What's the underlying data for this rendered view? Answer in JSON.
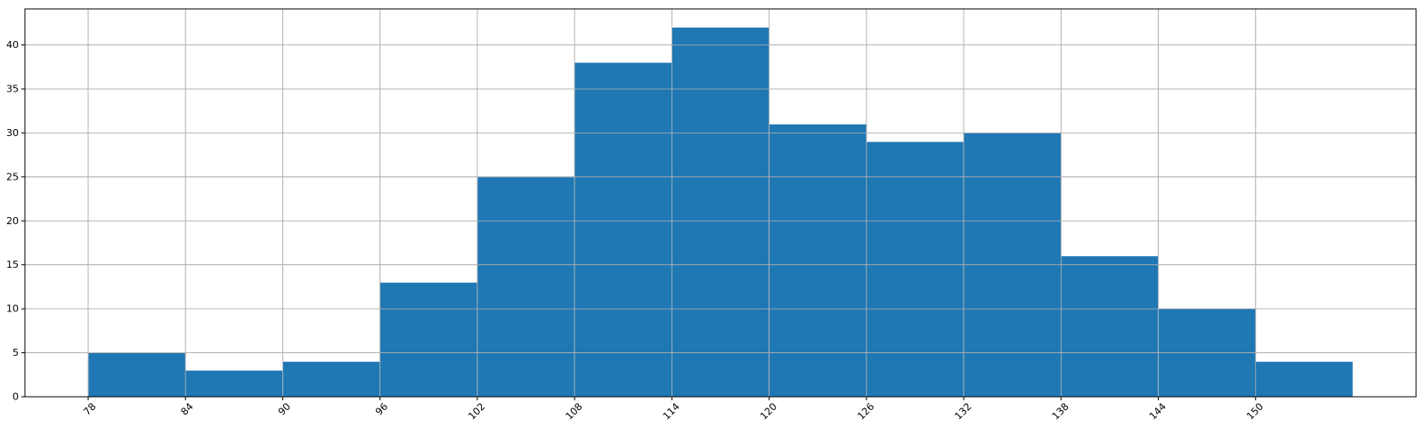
{
  "chart_data": {
    "type": "bar",
    "subtype": "histogram",
    "bin_edges": [
      78,
      84,
      90,
      96,
      102,
      108,
      114,
      120,
      126,
      132,
      138,
      144,
      150,
      156
    ],
    "counts": [
      5,
      3,
      4,
      13,
      25,
      38,
      42,
      31,
      29,
      30,
      16,
      10,
      4
    ],
    "x_ticks": [
      "78",
      "84",
      "90",
      "96",
      "102",
      "108",
      "114",
      "120",
      "126",
      "132",
      "138",
      "144",
      "150"
    ],
    "y_ticks": [
      "0",
      "5",
      "10",
      "15",
      "20",
      "25",
      "30",
      "35",
      "40"
    ],
    "xlim": [
      74.1,
      159.9
    ],
    "ylim": [
      0,
      44.1
    ],
    "x_tick_rotation": 45,
    "grid": true,
    "colors": {
      "bar": "#1f77b4",
      "grid": "#b0b0b0"
    }
  }
}
